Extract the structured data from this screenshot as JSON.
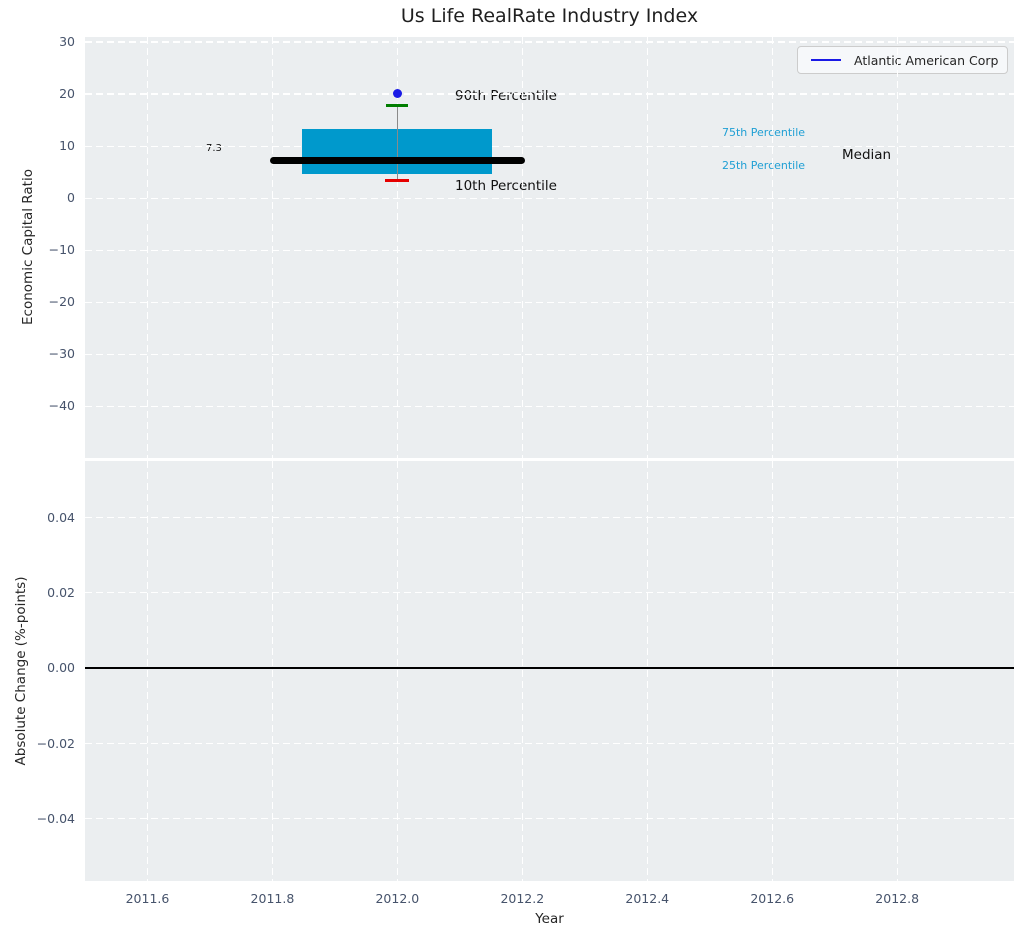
{
  "title": "Us Life RealRate Industry Index",
  "legend": {
    "label": "Atlantic American Corp",
    "line_color": "#1a1ae6"
  },
  "chart_data": [
    {
      "type": "boxplot",
      "subplot": "top",
      "title": "Us Life RealRate Industry Index",
      "xlabel": "Year",
      "ylabel": "Economic Capital Ratio",
      "xlim": [
        2011.5,
        2012.987
      ],
      "ylim": [
        -49.9,
        30.96
      ],
      "x_tick_values": [
        2011.6,
        2011.8,
        2012.0,
        2012.2,
        2012.4,
        2012.6,
        2012.8
      ],
      "x_tick_labels": [
        "2011.6",
        "2011.8",
        "2012.0",
        "2012.2",
        "2012.4",
        "2012.6",
        "2012.8"
      ],
      "y_tick_values": [
        30,
        20,
        10,
        0,
        -10,
        -20,
        -30,
        -40
      ],
      "y_tick_labels": [
        "30",
        "20",
        "10",
        "0",
        "−10",
        "−20",
        "−30",
        "−40"
      ],
      "grid": "white-dashed",
      "legend_position": "upper right",
      "box": {
        "x_center": 2012.0,
        "box_half_width": 0.152,
        "median_half_width": 0.204,
        "p10": 3.4,
        "p25": 4.6,
        "median": 7.3,
        "p75": 13.2,
        "p90": 17.8,
        "company_point": 20.2
      },
      "annotations": {
        "median_value_label": "7.3",
        "p90_label": "90th Percentile",
        "p10_label": "10th Percentile",
        "p75_label": "75th Percentile",
        "p25_label": "25th Percentile",
        "median_label": "Median"
      },
      "colors": {
        "plot_background": "#ebeef0",
        "grid": "#ffffff",
        "box_fill": "#0099cc",
        "median_line": "#000000",
        "whisker_line": "#8a8a8a",
        "p90_cap": "#007d00",
        "p10_cap": "#e60000",
        "company_dot": "#1a1ae6",
        "percentile_label_blue": "#1f9fd4",
        "tick_label": "#46536b"
      }
    },
    {
      "type": "line",
      "subplot": "bottom",
      "ylabel": "Absolute Change (%-points)",
      "xlabel": "Year",
      "xlim": [
        2011.5,
        2012.987
      ],
      "ylim": [
        -0.0565,
        0.055
      ],
      "y_tick_values": [
        0.04,
        0.02,
        0.0,
        -0.02,
        -0.04
      ],
      "y_tick_labels": [
        "0.04",
        "0.02",
        "0.00",
        "−0.02",
        "−0.04"
      ],
      "grid": "white-dashed",
      "zero_line_value": 0.0,
      "zero_line_color": "#000000"
    }
  ]
}
